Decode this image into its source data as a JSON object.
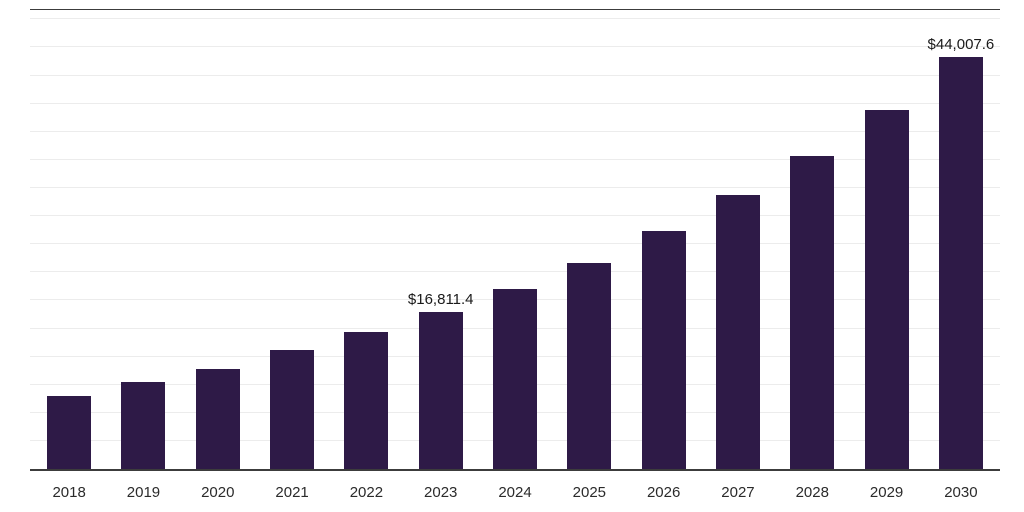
{
  "chart_data": {
    "type": "bar",
    "title": "",
    "xlabel": "",
    "ylabel": "",
    "categories": [
      "2018",
      "2019",
      "2020",
      "2021",
      "2022",
      "2023",
      "2024",
      "2025",
      "2026",
      "2027",
      "2028",
      "2029",
      "2030"
    ],
    "values": [
      7800,
      9300,
      10700,
      12700,
      14600,
      16811.4,
      19200,
      22000,
      25400,
      29200,
      33400,
      38300,
      44007.6
    ],
    "data_labels": {
      "2023": "$16,811.4",
      "2030": "$44,007.6"
    },
    "ylim": [
      0,
      49000
    ],
    "gridline_step": 3000,
    "grid": true,
    "legend": "none",
    "colors": {
      "bar": "#2E1A47",
      "gridline": "#ECECEC",
      "axis_line": "#3C3C3C",
      "value_label": "#1A1A1A",
      "tick_label": "#2B2B2B",
      "background": "#FFFFFF"
    }
  }
}
